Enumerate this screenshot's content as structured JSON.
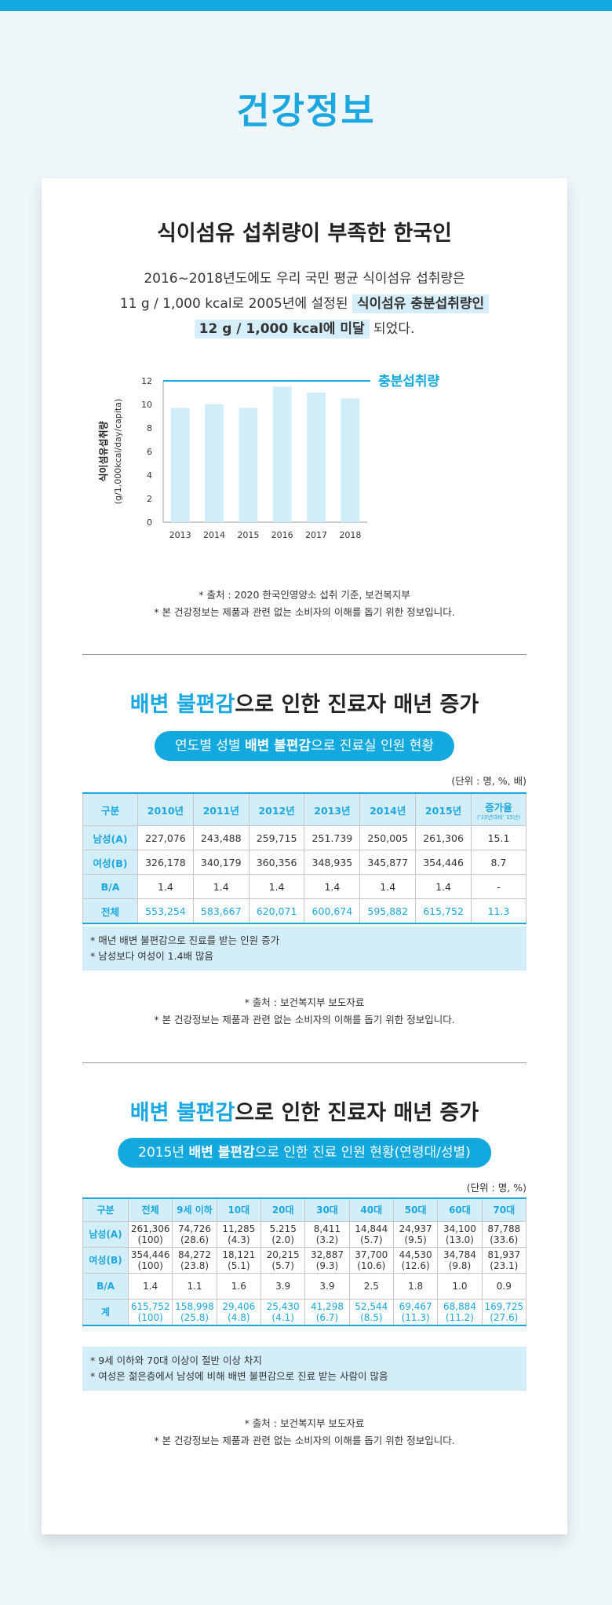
{
  "page_title": "건강정보",
  "section1": {
    "title": "식이섬유 섭취량이 부족한 한국인",
    "intro_line1": "2016~2018년도에도 우리 국민 평균 식이섬유 섭취량은",
    "intro_line2_pre": "11 g / 1,000 kcal로 2005년에 설정된 ",
    "intro_line2_hl": "식이섬유 충분섭취량인",
    "intro_line3_hl": "12 g / 1,000 kcal에 미달",
    "intro_line3_post": " 되었다.",
    "source": "* 출처 : 2020 한국인영양소 섭취 기준, 보건복지부",
    "disclaimer": "* 본 건강정보는 제품과 관련 없는 소비자의 이해를 돕기 위한 정보입니다."
  },
  "chart_data": {
    "type": "bar",
    "categories": [
      "2013",
      "2014",
      "2015",
      "2016",
      "2017",
      "2018"
    ],
    "values": [
      9.7,
      10.0,
      9.7,
      11.5,
      11.0,
      10.5
    ],
    "ylabel": "식이섬유섭취량",
    "ylabel_unit": "(g/1,000kcal/day/capita)",
    "ylim": [
      0,
      12
    ],
    "yticks": [
      "0",
      "2",
      "4",
      "6",
      "8",
      "10",
      "12"
    ],
    "reference_line": {
      "value": 12,
      "label": "충분섭취량"
    },
    "colors": {
      "bar": "#cfeefa",
      "reference": "#14a9de"
    },
    "grid": false
  },
  "section2": {
    "title_blue": "배변 불편감",
    "title_rest": "으로 인한 진료자 매년 증가",
    "pill_pre": "연도별 성별 ",
    "pill_bold": "배변 불편감",
    "pill_post": "으로 진료실 인원 현황",
    "unit": "(단위 : 명, %, 배)",
    "headers": [
      "구분",
      "2010년",
      "2011년",
      "2012년",
      "2013년",
      "2014년",
      "2015년",
      "증가율"
    ],
    "header_sub": "('10년대비' 15년)",
    "rows": [
      {
        "label": "남성(A)",
        "cells": [
          "227,076",
          "243,488",
          "259,715",
          "251.739",
          "250,005",
          "261,306",
          "15.1"
        ]
      },
      {
        "label": "여성(B)",
        "cells": [
          "326,178",
          "340,179",
          "360,356",
          "348,935",
          "345,877",
          "354,446",
          "8.7"
        ]
      },
      {
        "label": "B/A",
        "cells": [
          "1.4",
          "1.4",
          "1.4",
          "1.4",
          "1.4",
          "1.4",
          "-"
        ]
      },
      {
        "label": "전체",
        "cells": [
          "553,254",
          "583,667",
          "620,071",
          "600,674",
          "595,882",
          "615,752",
          "11.3"
        ]
      }
    ],
    "notes": [
      "* 매년 배변 불편감으로 진료를 받는 인원 증가",
      "* 남성보다 여성이 1.4배 많음"
    ],
    "source": "* 출처 : 보건복지부 보도자료",
    "disclaimer": "* 본 건강정보는 제품과 관련 없는 소비자의 이해를 돕기 위한 정보입니다."
  },
  "section3": {
    "title_blue": "배변 불편감",
    "title_rest": "으로 인한 진료자 매년 증가",
    "pill_pre": "2015년 ",
    "pill_bold": "배변 불편감",
    "pill_post": "으로 인한 진료 인원 현황(연령대/성별)",
    "unit": "(단위 : 명, %)",
    "headers": [
      "구분",
      "전체",
      "9세 이하",
      "10대",
      "20대",
      "30대",
      "40대",
      "50대",
      "60대",
      "70대"
    ],
    "rows": [
      {
        "label": "남성(A)",
        "cells": [
          [
            "261,306",
            "(100)"
          ],
          [
            "74,726",
            "(28.6)"
          ],
          [
            "11,285",
            "(4.3)"
          ],
          [
            "5.215",
            "(2.0)"
          ],
          [
            "8,411",
            "(3.2)"
          ],
          [
            "14,844",
            "(5.7)"
          ],
          [
            "24,937",
            "(9.5)"
          ],
          [
            "34,100",
            "(13.0)"
          ],
          [
            "87,788",
            "(33.6)"
          ]
        ]
      },
      {
        "label": "여성(B)",
        "cells": [
          [
            "354,446",
            "(100)"
          ],
          [
            "84,272",
            "(23.8)"
          ],
          [
            "18,121",
            "(5.1)"
          ],
          [
            "20,215",
            "(5.7)"
          ],
          [
            "32,887",
            "(9.3)"
          ],
          [
            "37,700",
            "(10.6)"
          ],
          [
            "44,530",
            "(12.6)"
          ],
          [
            "34,784",
            "(9.8)"
          ],
          [
            "81,937",
            "(23.1)"
          ]
        ]
      },
      {
        "label": "B/A",
        "cells": [
          [
            "1.4",
            ""
          ],
          [
            "1.1",
            ""
          ],
          [
            "1.6",
            ""
          ],
          [
            "3.9",
            ""
          ],
          [
            "3.9",
            ""
          ],
          [
            "2.5",
            ""
          ],
          [
            "1.8",
            ""
          ],
          [
            "1.0",
            ""
          ],
          [
            "0.9",
            ""
          ]
        ]
      },
      {
        "label": "계",
        "cells": [
          [
            "615,752",
            "(100)"
          ],
          [
            "158,998",
            "(25.8)"
          ],
          [
            "29,406",
            "(4.8)"
          ],
          [
            "25,430",
            "(4.1)"
          ],
          [
            "41,298",
            "(6.7)"
          ],
          [
            "52,544",
            "(8.5)"
          ],
          [
            "69,467",
            "(11.3)"
          ],
          [
            "68,884",
            "(11.2)"
          ],
          [
            "169,725",
            "(27.6)"
          ]
        ]
      }
    ],
    "notes": [
      "* 9세 이하와 70대 이상이 절반 이상 차지",
      "* 여성은 젊은층에서 남성에 비해 배변 불편감으로 진료 받는 사람이 많음"
    ],
    "source": "* 출처 : 보건복지부 보도자료",
    "disclaimer": "* 본 건강정보는 제품과 관련 없는 소비자의 이해를 돕기 위한 정보입니다."
  }
}
